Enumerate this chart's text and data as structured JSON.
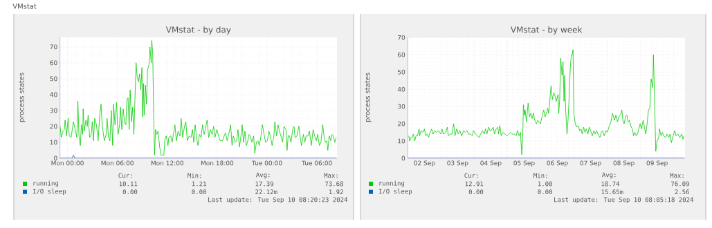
{
  "chart_data": [
    {
      "type": "line",
      "title": "VMstat - by day",
      "ylabel": "process states",
      "xlim": [
        "2024-09-08T23:06",
        "2024-09-10T08:24"
      ],
      "ylim": [
        0,
        76
      ],
      "xticks": [
        {
          "value": "2024-09-09T00:00",
          "label": "Mon 00:00"
        },
        {
          "value": "2024-09-09T06:00",
          "label": "Mon 06:00"
        },
        {
          "value": "2024-09-09T12:00",
          "label": "Mon 12:00"
        },
        {
          "value": "2024-09-09T18:00",
          "label": "Mon 18:00"
        },
        {
          "value": "2024-09-10T00:00",
          "label": "Tue 00:00"
        },
        {
          "value": "2024-09-10T06:00",
          "label": "Tue 06:00"
        }
      ],
      "yticks": [
        0,
        10,
        20,
        30,
        40,
        50,
        60,
        70
      ],
      "grid": true,
      "legend": "bottom",
      "marker": "none",
      "series": [
        {
          "name": "running",
          "color": "#00cc00",
          "x": [
            "2024-09-08T23:07",
            "2024-09-08T23:15",
            "2024-09-08T23:27",
            "2024-09-08T23:37",
            "2024-09-08T23:43",
            "2024-09-08T23:53",
            "2024-09-09T00:05",
            "2024-09-09T00:13",
            "2024-09-09T00:26",
            "2024-09-09T00:43",
            "2024-09-09T00:55",
            "2024-09-09T01:07",
            "2024-09-09T01:15",
            "2024-09-09T01:23",
            "2024-09-09T01:33",
            "2024-09-09T01:40",
            "2024-09-09T01:50",
            "2024-09-09T01:53",
            "2024-09-09T02:01",
            "2024-09-09T02:13",
            "2024-09-09T02:23",
            "2024-09-09T02:29",
            "2024-09-09T02:40",
            "2024-09-09T02:51",
            "2024-09-09T02:59",
            "2024-09-09T03:08",
            "2024-09-09T03:16",
            "2024-09-09T03:29",
            "2024-09-09T03:41",
            "2024-09-09T03:53",
            "2024-09-09T04:02",
            "2024-09-09T04:11",
            "2024-09-09T04:26",
            "2024-09-09T04:39",
            "2024-09-09T04:46",
            "2024-09-09T04:56",
            "2024-09-09T05:06",
            "2024-09-09T05:16",
            "2024-09-09T05:26",
            "2024-09-09T05:32",
            "2024-09-09T05:43",
            "2024-09-09T05:54",
            "2024-09-09T06:05",
            "2024-09-09T06:16",
            "2024-09-09T06:22",
            "2024-09-09T06:32",
            "2024-09-09T06:42",
            "2024-09-09T06:52",
            "2024-09-09T07:01",
            "2024-09-09T07:09",
            "2024-09-09T07:17",
            "2024-09-09T07:25",
            "2024-09-09T07:32",
            "2024-09-09T07:42",
            "2024-09-09T07:50",
            "2024-09-09T07:59",
            "2024-09-09T08:07",
            "2024-09-09T08:15",
            "2024-09-09T08:23",
            "2024-09-09T08:32",
            "2024-09-09T08:40",
            "2024-09-09T08:49",
            "2024-09-09T08:57",
            "2024-09-09T09:02",
            "2024-09-09T09:08",
            "2024-09-09T09:13",
            "2024-09-09T09:22",
            "2024-09-09T09:30",
            "2024-09-09T09:38",
            "2024-09-09T09:47",
            "2024-09-09T09:55",
            "2024-09-09T10:04",
            "2024-09-09T10:08",
            "2024-09-09T10:15",
            "2024-09-09T10:22",
            "2024-09-09T10:28",
            "2024-09-09T10:35",
            "2024-09-09T10:45",
            "2024-09-09T10:53",
            "2024-09-09T11:05",
            "2024-09-09T11:15",
            "2024-09-09T11:35",
            "2024-09-09T11:43",
            "2024-09-09T11:52",
            "2024-09-09T12:05",
            "2024-09-09T12:11",
            "2024-09-09T12:25",
            "2024-09-09T12:35",
            "2024-09-09T12:44",
            "2024-09-09T12:55",
            "2024-09-09T13:06",
            "2024-09-09T13:18",
            "2024-09-09T13:31",
            "2024-09-09T13:40",
            "2024-09-09T13:51",
            "2024-09-09T14:04",
            "2024-09-09T14:14",
            "2024-09-09T14:24",
            "2024-09-09T14:38",
            "2024-09-09T14:51",
            "2024-09-09T15:02",
            "2024-09-09T15:11",
            "2024-09-09T15:21",
            "2024-09-09T15:31",
            "2024-09-09T15:41",
            "2024-09-09T15:52",
            "2024-09-09T16:04",
            "2024-09-09T16:14",
            "2024-09-09T16:26",
            "2024-09-09T16:34",
            "2024-09-09T16:47",
            "2024-09-09T16:59",
            "2024-09-09T17:10",
            "2024-09-09T17:24",
            "2024-09-09T17:34",
            "2024-09-09T17:44",
            "2024-09-09T17:57",
            "2024-09-09T18:10",
            "2024-09-09T18:22",
            "2024-09-09T18:38",
            "2024-09-09T18:50",
            "2024-09-09T19:00",
            "2024-09-09T19:12",
            "2024-09-09T19:23",
            "2024-09-09T19:37",
            "2024-09-09T19:47",
            "2024-09-09T19:56",
            "2024-09-09T20:10",
            "2024-09-09T20:20",
            "2024-09-09T20:30",
            "2024-09-09T20:40",
            "2024-09-09T20:50",
            "2024-09-09T21:00",
            "2024-09-09T21:10",
            "2024-09-09T21:20",
            "2024-09-09T21:30",
            "2024-09-09T21:41",
            "2024-09-09T21:50",
            "2024-09-09T21:59",
            "2024-09-09T22:10",
            "2024-09-09T22:23",
            "2024-09-09T22:31",
            "2024-09-09T22:43",
            "2024-09-09T22:53",
            "2024-09-09T23:04",
            "2024-09-09T23:16",
            "2024-09-09T23:26",
            "2024-09-09T23:38",
            "2024-09-09T23:49",
            "2024-09-10T00:02",
            "2024-09-10T00:13",
            "2024-09-10T00:23",
            "2024-09-10T00:36",
            "2024-09-10T00:49",
            "2024-09-10T00:56",
            "2024-09-10T01:09",
            "2024-09-10T01:19",
            "2024-09-10T01:29",
            "2024-09-10T01:43",
            "2024-09-10T01:52",
            "2024-09-10T02:02",
            "2024-09-10T02:16",
            "2024-09-10T02:24",
            "2024-09-10T02:32",
            "2024-09-10T02:42",
            "2024-09-10T02:52",
            "2024-09-10T03:05",
            "2024-09-10T03:14",
            "2024-09-10T03:22",
            "2024-09-10T03:35",
            "2024-09-10T03:49",
            "2024-09-10T03:59",
            "2024-09-10T04:08",
            "2024-09-10T04:22",
            "2024-09-10T04:32",
            "2024-09-10T04:42",
            "2024-09-10T04:55",
            "2024-09-10T05:05",
            "2024-09-10T05:19",
            "2024-09-10T05:32",
            "2024-09-10T05:43",
            "2024-09-10T05:55",
            "2024-09-10T06:05",
            "2024-09-10T06:17",
            "2024-09-10T06:28",
            "2024-09-10T06:41",
            "2024-09-10T06:52",
            "2024-09-10T07:01",
            "2024-09-10T07:11",
            "2024-09-10T07:18",
            "2024-09-10T07:28",
            "2024-09-10T07:40",
            "2024-09-10T07:48",
            "2024-09-10T07:58",
            "2024-09-10T08:08",
            "2024-09-10T08:18"
          ],
          "values": [
            20,
            13,
            17,
            18,
            24,
            14,
            25,
            14,
            13,
            23,
            18,
            13,
            36,
            14,
            8,
            21,
            15,
            31,
            17,
            24,
            20,
            27,
            13,
            15,
            23,
            11,
            25,
            21,
            11,
            27,
            34,
            20,
            11,
            15,
            25,
            13,
            11,
            30,
            8,
            34,
            21,
            35,
            15,
            21,
            32,
            18,
            31,
            22,
            21,
            37,
            38,
            18,
            43,
            23,
            32,
            15,
            38,
            60,
            51,
            48,
            53,
            43,
            57,
            26,
            47,
            27,
            46,
            34,
            56,
            58,
            70,
            60,
            74,
            66,
            27,
            2,
            18,
            15,
            17,
            7,
            2,
            2,
            12,
            14,
            8,
            13,
            14,
            10,
            15,
            21,
            11,
            17,
            14,
            25,
            13,
            20,
            23,
            11,
            14,
            13,
            18,
            10,
            21,
            13,
            8,
            15,
            13,
            21,
            15,
            18,
            24,
            13,
            18,
            15,
            20,
            13,
            18,
            14,
            11,
            11,
            14,
            16,
            11,
            15,
            21,
            8,
            14,
            10,
            11,
            18,
            7,
            13,
            21,
            10,
            17,
            8,
            11,
            15,
            14,
            10,
            14,
            3,
            10,
            11,
            8,
            14,
            21,
            15,
            10,
            11,
            17,
            14,
            8,
            14,
            23,
            14,
            21,
            17,
            13,
            10,
            20,
            18,
            5,
            14,
            14,
            10,
            18,
            20,
            13,
            14,
            20,
            13,
            8,
            15,
            10,
            14,
            14,
            17,
            8,
            18,
            14,
            11,
            15,
            8,
            10,
            21,
            13,
            10,
            11,
            5,
            14,
            11,
            15,
            14,
            10,
            13
          ]
        },
        {
          "name": "I/O sleep",
          "color": "#0066b3",
          "x": [
            "2024-09-08T23:07",
            "2024-09-09T00:33",
            "2024-09-09T00:43",
            "2024-09-09T00:54",
            "2024-09-10T08:18"
          ],
          "values": [
            0,
            0,
            1.9,
            0,
            0
          ]
        }
      ],
      "annotations": [
        "VMstat",
        "Cur:",
        "Min:",
        "Avg:",
        "Max:",
        "10.11",
        "1.21",
        "17.39",
        "73.68",
        "0.00",
        "0.00",
        "22.12m",
        "1.92",
        "Last update: Tue Sep 10 08:20:23 2024"
      ]
    },
    {
      "type": "line",
      "title": "VMstat - by week",
      "ylabel": "process states",
      "xlim": [
        "2024-09-02T00:00",
        "2024-09-10T08:10"
      ],
      "ylim": [
        0,
        70
      ],
      "xticks": [
        {
          "value": "2024-09-02T12:00",
          "label": "02 Sep"
        },
        {
          "value": "2024-09-03T00:00",
          "label": null
        },
        {
          "value": "2024-09-03T12:00",
          "label": "03 Sep"
        },
        {
          "value": "2024-09-04T00:00",
          "label": null
        },
        {
          "value": "2024-09-04T12:00",
          "label": "04 Sep"
        },
        {
          "value": "2024-09-05T00:00",
          "label": null
        },
        {
          "value": "2024-09-05T12:00",
          "label": "05 Sep"
        },
        {
          "value": "2024-09-06T00:00",
          "label": null
        },
        {
          "value": "2024-09-06T12:00",
          "label": "06 Sep"
        },
        {
          "value": "2024-09-07T00:00",
          "label": null
        },
        {
          "value": "2024-09-07T12:00",
          "label": "07 Sep"
        },
        {
          "value": "2024-09-08T00:00",
          "label": null
        },
        {
          "value": "2024-09-08T12:00",
          "label": "08 Sep"
        },
        {
          "value": "2024-09-09T00:00",
          "label": null
        },
        {
          "value": "2024-09-09T12:00",
          "label": "09 Sep"
        },
        {
          "value": "2024-09-10T00:00",
          "label": null
        }
      ],
      "yticks": [
        0,
        10,
        20,
        30,
        40,
        50,
        60,
        70
      ],
      "grid": true,
      "legend": "bottom",
      "marker": "none",
      "series": [
        {
          "name": "running",
          "color": "#00cc00",
          "x": [
            "2024-09-02T00:43",
            "2024-09-02T01:26",
            "2024-09-02T02:10",
            "2024-09-02T03:07",
            "2024-09-02T04:05",
            "2024-09-02T05:02",
            "2024-09-02T06:00",
            "2024-09-02T06:58",
            "2024-09-02T08:10",
            "2024-09-02T08:38",
            "2024-09-02T09:36",
            "2024-09-02T10:48",
            "2024-09-02T12:00",
            "2024-09-02T12:58",
            "2024-09-02T13:55",
            "2024-09-02T15:07",
            "2024-09-02T15:36",
            "2024-09-02T17:17",
            "2024-09-02T18:14",
            "2024-09-02T19:26",
            "2024-09-02T20:38",
            "2024-09-02T22:19",
            "2024-09-02T23:46",
            "2024-09-03T00:43",
            "2024-09-03T01:41",
            "2024-09-03T03:22",
            "2024-09-03T04:34",
            "2024-09-03T05:17",
            "2024-09-03T06:43",
            "2024-09-03T07:55",
            "2024-09-03T09:07",
            "2024-09-03T10:05",
            "2024-09-03T11:17",
            "2024-09-03T12:29",
            "2024-09-03T13:41",
            "2024-09-03T14:53",
            "2024-09-03T16:19",
            "2024-09-03T17:31",
            "2024-09-03T18:43",
            "2024-09-03T19:55",
            "2024-09-03T21:22",
            "2024-09-03T22:34",
            "2024-09-03T23:31",
            "2024-09-04T00:58",
            "2024-09-04T02:10",
            "2024-09-04T03:36",
            "2024-09-04T04:34",
            "2024-09-04T06:00",
            "2024-09-04T07:12",
            "2024-09-04T08:10",
            "2024-09-04T09:07",
            "2024-09-04T10:19",
            "2024-09-04T11:17",
            "2024-09-04T12:14",
            "2024-09-04T13:41",
            "2024-09-04T14:38",
            "2024-09-04T15:50",
            "2024-09-04T17:02",
            "2024-09-04T17:31",
            "2024-09-04T18:29",
            "2024-09-04T19:26",
            "2024-09-04T20:53",
            "2024-09-04T22:05",
            "2024-09-04T23:31",
            "2024-09-05T00:58",
            "2024-09-05T02:10",
            "2024-09-05T03:36",
            "2024-09-05T04:48",
            "2024-09-05T06:14",
            "2024-09-05T07:12",
            "2024-09-05T08:24",
            "2024-09-05T09:22",
            "2024-09-05T10:19",
            "2024-09-05T11:02",
            "2024-09-05T11:31",
            "2024-09-05T12:14",
            "2024-09-05T12:43",
            "2024-09-05T13:41",
            "2024-09-05T14:53",
            "2024-09-05T15:50",
            "2024-09-05T16:48",
            "2024-09-05T17:46",
            "2024-09-05T18:43",
            "2024-09-05T19:41",
            "2024-09-05T20:53",
            "2024-09-05T21:50",
            "2024-09-05T22:48",
            "2024-09-05T23:46",
            "2024-09-06T01:12",
            "2024-09-06T02:10",
            "2024-09-06T03:07",
            "2024-09-06T04:05",
            "2024-09-06T05:02",
            "2024-09-06T05:46",
            "2024-09-06T06:29",
            "2024-09-06T07:26",
            "2024-09-06T08:24",
            "2024-09-06T09:22",
            "2024-09-06T10:19",
            "2024-09-06T11:17",
            "2024-09-06T12:29",
            "2024-09-06T12:58",
            "2024-09-06T13:41",
            "2024-09-06T14:24",
            "2024-09-06T15:22",
            "2024-09-06T16:05",
            "2024-09-06T16:48",
            "2024-09-06T17:17",
            "2024-09-06T18:00",
            "2024-09-06T18:58",
            "2024-09-06T19:41",
            "2024-09-06T20:24",
            "2024-09-06T21:22",
            "2024-09-06T22:05",
            "2024-09-06T22:48",
            "2024-09-06T23:17",
            "2024-09-07T00:00",
            "2024-09-07T00:58",
            "2024-09-07T01:55",
            "2024-09-07T02:53",
            "2024-09-07T04:05",
            "2024-09-07T05:02",
            "2024-09-07T06:00",
            "2024-09-07T06:58",
            "2024-09-07T07:55",
            "2024-09-07T08:53",
            "2024-09-07T10:05",
            "2024-09-07T11:02",
            "2024-09-07T12:00",
            "2024-09-07T13:12",
            "2024-09-07T14:24",
            "2024-09-07T15:22",
            "2024-09-07T16:19",
            "2024-09-07T17:17",
            "2024-09-07T18:43",
            "2024-09-07T19:41",
            "2024-09-07T20:38",
            "2024-09-07T21:50",
            "2024-09-07T23:02",
            "2024-09-08T00:00",
            "2024-09-08T01:12",
            "2024-09-08T02:38",
            "2024-09-08T03:50",
            "2024-09-08T05:17",
            "2024-09-08T06:14",
            "2024-09-08T07:26",
            "2024-09-08T08:24",
            "2024-09-08T09:36",
            "2024-09-08T10:34",
            "2024-09-08T11:17",
            "2024-09-08T12:14",
            "2024-09-08T13:12",
            "2024-09-08T14:10",
            "2024-09-08T15:07",
            "2024-09-08T16:05",
            "2024-09-08T17:17",
            "2024-09-08T18:14",
            "2024-09-08T18:58",
            "2024-09-08T19:55",
            "2024-09-08T20:53",
            "2024-09-08T21:50",
            "2024-09-08T22:48",
            "2024-09-08T23:46",
            "2024-09-09T00:43",
            "2024-09-09T01:55",
            "2024-09-09T02:53",
            "2024-09-09T03:50",
            "2024-09-09T04:48",
            "2024-09-09T05:46",
            "2024-09-09T06:43",
            "2024-09-09T07:41",
            "2024-09-09T08:53",
            "2024-09-09T09:22",
            "2024-09-09T10:05",
            "2024-09-09T11:02",
            "2024-09-09T12:00",
            "2024-09-09T13:12",
            "2024-09-09T13:41",
            "2024-09-09T14:53",
            "2024-09-09T15:50",
            "2024-09-09T16:48",
            "2024-09-09T18:14",
            "2024-09-09T19:12",
            "2024-09-09T20:24",
            "2024-09-09T21:22",
            "2024-09-09T22:19",
            "2024-09-09T23:31",
            "2024-09-10T00:43",
            "2024-09-10T01:41",
            "2024-09-10T03:07",
            "2024-09-10T04:19",
            "2024-09-10T05:46",
            "2024-09-10T06:43",
            "2024-09-10T07:26"
          ],
          "values": [
            13,
            10,
            12,
            12,
            14,
            10,
            13,
            13,
            17,
            13,
            16,
            15,
            17,
            13,
            14,
            12,
            14,
            17,
            14,
            16,
            15,
            16,
            14,
            17,
            14,
            15,
            18,
            13,
            14,
            14,
            20,
            13,
            17,
            14,
            16,
            13,
            16,
            15,
            16,
            14,
            14,
            13,
            16,
            14,
            13,
            12,
            14,
            16,
            14,
            17,
            14,
            18,
            16,
            16,
            18,
            14,
            17,
            18,
            14,
            19,
            13,
            15,
            14,
            13,
            14,
            15,
            14,
            14,
            13,
            16,
            13,
            15,
            2,
            14,
            31,
            25,
            28,
            21,
            32,
            24,
            26,
            23,
            26,
            22,
            20,
            22,
            21,
            20,
            25,
            28,
            24,
            26,
            29,
            26,
            33,
            42,
            34,
            38,
            36,
            33,
            37,
            26,
            34,
            58,
            48,
            56,
            33,
            48,
            28,
            14,
            22,
            33,
            53,
            60,
            60,
            63,
            25,
            20,
            18,
            19,
            16,
            17,
            14,
            18,
            15,
            17,
            14,
            18,
            16,
            13,
            16,
            14,
            16,
            14,
            12,
            15,
            16,
            13,
            16,
            15,
            18,
            21,
            26,
            22,
            25,
            21,
            24,
            25,
            28,
            22,
            20,
            24,
            25,
            21,
            22,
            18,
            17,
            13,
            15,
            13,
            14,
            17,
            20,
            17,
            22,
            18,
            14,
            20,
            28,
            29,
            46,
            41,
            60,
            38,
            4,
            10,
            12,
            17,
            13,
            15,
            13,
            12,
            14,
            12,
            14,
            9,
            13,
            16,
            13,
            14,
            12,
            14,
            11,
            13
          ]
        },
        {
          "name": "I/O sleep",
          "color": "#0066b3",
          "x": [
            "2024-09-02T00:29",
            "2024-09-10T07:26"
          ],
          "values": [
            0,
            0
          ]
        }
      ],
      "annotations": [
        "Cur:",
        "Min:",
        "Avg:",
        "Max:",
        "12.91",
        "1.00",
        "18.74",
        "76.09",
        "0.00",
        "0.00",
        "15.65m",
        "2.56",
        "Last update: Tue Sep 10 08:05:18 2024"
      ]
    }
  ]
}
